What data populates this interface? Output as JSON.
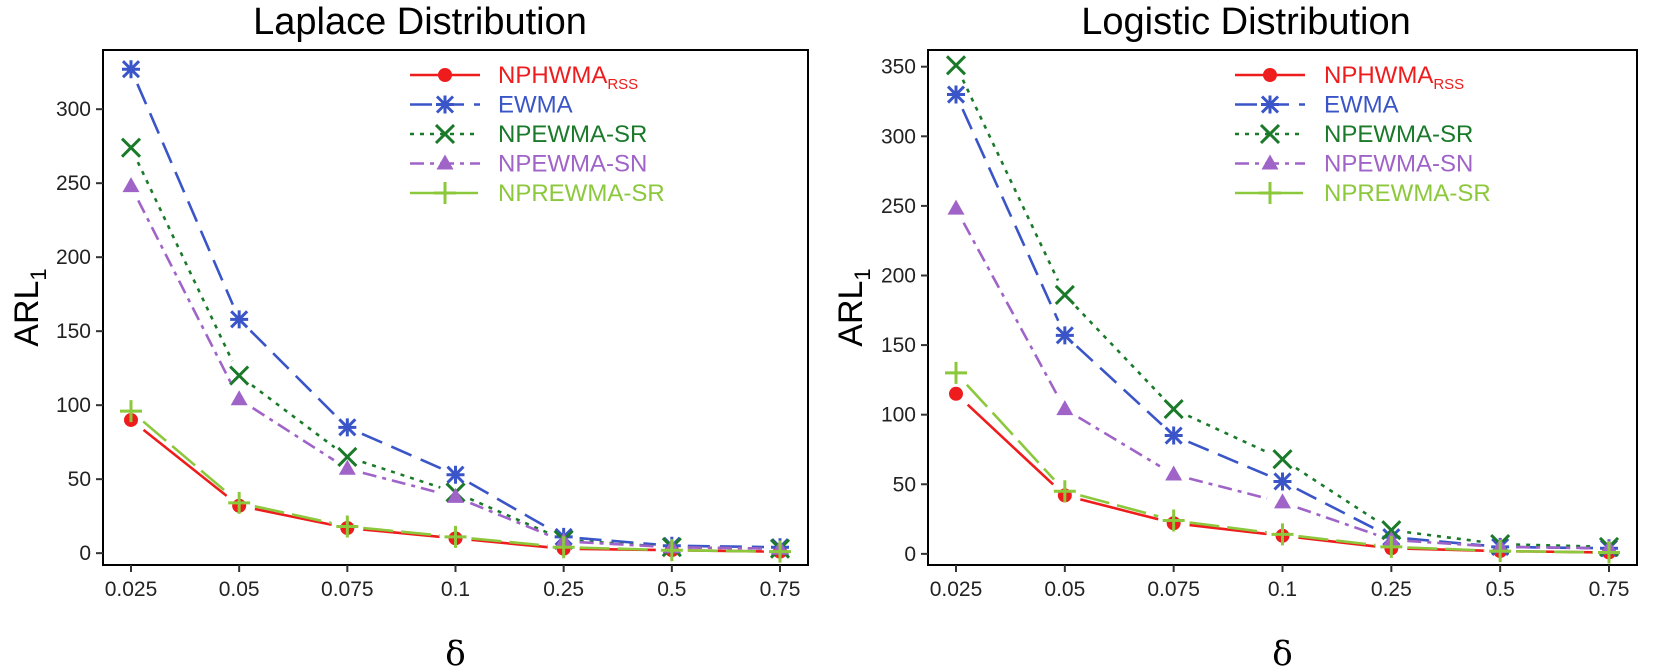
{
  "chart_data": [
    {
      "type": "line",
      "title": "Laplace Distribution",
      "xlabel": "δ",
      "ylabel_main": "ARL",
      "ylabel_sub": "1",
      "categories": [
        "0.025",
        "0.05",
        "0.075",
        "0.1",
        "0.25",
        "0.5",
        "0.75"
      ],
      "ylim": [
        -8,
        340
      ],
      "yticks": [
        "0",
        "50",
        "100",
        "150",
        "200",
        "250",
        "300"
      ],
      "ytick_values": [
        0,
        50,
        100,
        150,
        200,
        250,
        300
      ],
      "legend_position": "top-right",
      "series": [
        {
          "name": "NPHWMA",
          "name_sub": "RSS",
          "color": "#ee1c1c",
          "marker": "circle",
          "dash": "solid",
          "values": [
            90,
            32,
            17,
            10,
            3,
            2,
            1
          ]
        },
        {
          "name": "EWMA",
          "name_sub": "",
          "color": "#3a55c8",
          "marker": "asterisk",
          "dash": "longdash",
          "values": [
            327,
            158,
            85,
            53,
            11,
            5,
            4
          ]
        },
        {
          "name": "NPEWMA-SR",
          "name_sub": "",
          "color": "#1a7a2a",
          "marker": "x",
          "dash": "dotted",
          "values": [
            274,
            120,
            65,
            41,
            9,
            4,
            3
          ]
        },
        {
          "name": "NPEWMA-SN",
          "name_sub": "",
          "color": "#a064c8",
          "marker": "triangle",
          "dash": "dashdot",
          "values": [
            248,
            104,
            57,
            38,
            8,
            4,
            3
          ]
        },
        {
          "name": "NPREWMA-SR",
          "name_sub": "",
          "color": "#8cc83c",
          "marker": "plus",
          "dash": "twodash",
          "values": [
            96,
            34,
            18,
            11,
            4,
            2,
            1
          ]
        }
      ]
    },
    {
      "type": "line",
      "title": "Logistic Distribution",
      "xlabel": "δ",
      "ylabel_main": "ARL",
      "ylabel_sub": "1",
      "categories": [
        "0.025",
        "0.05",
        "0.075",
        "0.1",
        "0.25",
        "0.5",
        "0.75"
      ],
      "ylim": [
        -8,
        362
      ],
      "yticks": [
        "0",
        "50",
        "100",
        "150",
        "200",
        "250",
        "300",
        "350"
      ],
      "ytick_values": [
        0,
        50,
        100,
        150,
        200,
        250,
        300,
        350
      ],
      "legend_position": "top-right",
      "series": [
        {
          "name": "NPHWMA",
          "name_sub": "RSS",
          "color": "#ee1c1c",
          "marker": "circle",
          "dash": "solid",
          "values": [
            115,
            42,
            22,
            13,
            4,
            2,
            1
          ]
        },
        {
          "name": "EWMA",
          "name_sub": "",
          "color": "#3a55c8",
          "marker": "asterisk",
          "dash": "longdash",
          "values": [
            330,
            157,
            85,
            52,
            12,
            5,
            4
          ]
        },
        {
          "name": "NPEWMA-SR",
          "name_sub": "",
          "color": "#1a7a2a",
          "marker": "x",
          "dash": "dotted",
          "values": [
            351,
            186,
            104,
            68,
            17,
            7,
            5
          ]
        },
        {
          "name": "NPEWMA-SN",
          "name_sub": "",
          "color": "#a064c8",
          "marker": "triangle",
          "dash": "dashdot",
          "values": [
            248,
            104,
            57,
            37,
            10,
            5,
            4
          ]
        },
        {
          "name": "NPREWMA-SR",
          "name_sub": "",
          "color": "#8cc83c",
          "marker": "plus",
          "dash": "twodash",
          "values": [
            130,
            45,
            24,
            14,
            5,
            2,
            1
          ]
        }
      ]
    }
  ]
}
